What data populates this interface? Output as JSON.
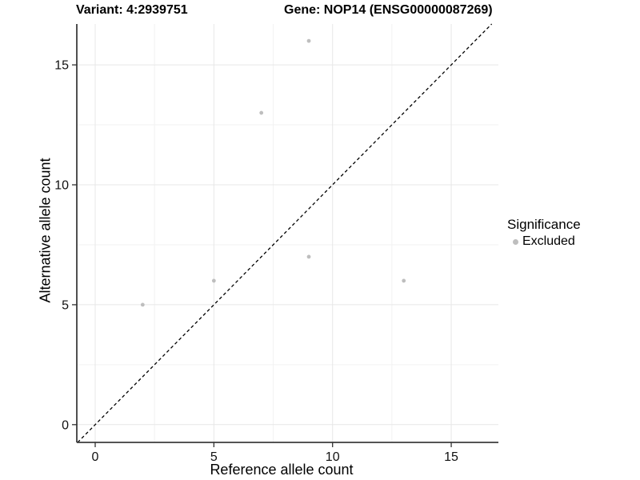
{
  "header": {
    "variant_label": "Variant: 4:2939751",
    "gene_label": "Gene: NOP14 (ENSG00000087269)"
  },
  "chart_data": {
    "type": "scatter",
    "title_left": "Variant: 4:2939751",
    "title_right": "Gene: NOP14 (ENSG00000087269)",
    "xlabel": "Reference allele count",
    "ylabel": "Alternative allele count",
    "xlim": [
      -0.78,
      17.0
    ],
    "ylim": [
      -0.74,
      16.71
    ],
    "x_ticks": [
      0,
      5,
      10,
      15
    ],
    "y_ticks": [
      0,
      5,
      10,
      15
    ],
    "x_minor_ticks": [
      2.5,
      7.5,
      12.5
    ],
    "y_minor_ticks": [
      2.5,
      7.5,
      12.5
    ],
    "grid": true,
    "series": [
      {
        "name": "Excluded",
        "color": "#bebebe",
        "points": [
          {
            "x": 2,
            "y": 5
          },
          {
            "x": 5,
            "y": 6
          },
          {
            "x": 7,
            "y": 13
          },
          {
            "x": 9,
            "y": 16
          },
          {
            "x": 9,
            "y": 7
          },
          {
            "x": 13,
            "y": 6
          }
        ]
      }
    ],
    "reference_line": {
      "type": "identity",
      "equation": "y = x",
      "style": "dashed",
      "color": "#000000"
    },
    "legend": {
      "title": "Significance",
      "position": "right",
      "items": [
        {
          "label": "Excluded",
          "color": "#bebebe",
          "marker": "circle"
        }
      ]
    }
  },
  "colors": {
    "background": "#ffffff",
    "grid_major": "#e7e7e7",
    "grid_minor": "#f2f2f2",
    "axis_line": "#3c3c3c",
    "tick_mark": "#333333",
    "tick_text": "#111111",
    "point": "#bebebe"
  }
}
